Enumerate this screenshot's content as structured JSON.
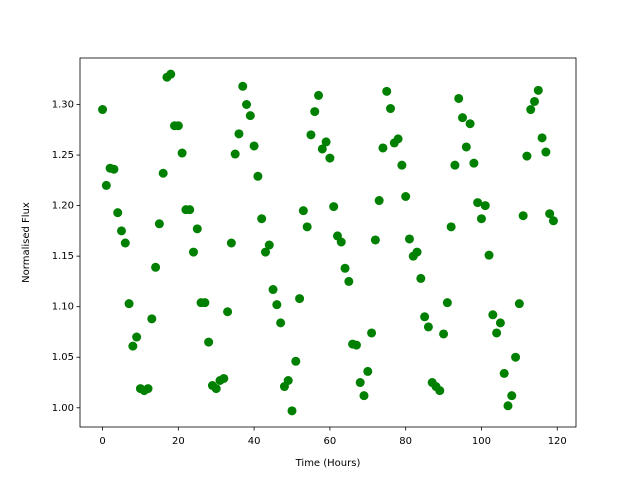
{
  "chart_data": {
    "type": "scatter",
    "xlabel": "Time (Hours)",
    "ylabel": "Normalised Flux",
    "color": "#008000",
    "x": [
      0,
      1,
      2,
      3,
      4,
      5,
      6,
      7,
      8,
      9,
      10,
      11,
      12,
      13,
      14,
      15,
      16,
      17,
      18,
      19,
      20,
      21,
      22,
      23,
      24,
      25,
      26,
      27,
      28,
      29,
      30,
      31,
      32,
      33,
      34,
      35,
      36,
      37,
      38,
      39,
      40,
      41,
      42,
      43,
      44,
      45,
      46,
      47,
      48,
      49,
      50,
      51,
      52,
      53,
      54,
      55,
      56,
      57,
      58,
      59,
      60,
      61,
      62,
      63,
      64,
      65,
      66,
      67,
      68,
      69,
      70,
      71,
      72,
      73,
      74,
      75,
      76,
      77,
      78,
      79,
      80,
      81,
      82,
      83,
      84,
      85,
      86,
      87,
      88,
      89,
      90,
      91,
      92,
      93,
      94,
      95,
      96,
      97,
      98,
      99,
      100,
      101,
      102,
      103,
      104,
      105,
      106,
      107,
      108,
      109,
      110,
      111,
      112,
      113,
      114,
      115,
      116,
      117,
      118,
      119
    ],
    "values": [
      1.295,
      1.22,
      1.237,
      1.236,
      1.193,
      1.175,
      1.163,
      1.103,
      1.061,
      1.07,
      1.019,
      1.017,
      1.019,
      1.088,
      1.139,
      1.182,
      1.232,
      1.327,
      1.33,
      1.279,
      1.279,
      1.252,
      1.196,
      1.196,
      1.154,
      1.177,
      1.104,
      1.104,
      1.065,
      1.022,
      1.019,
      1.027,
      1.029,
      1.095,
      1.163,
      1.251,
      1.271,
      1.318,
      1.3,
      1.289,
      1.259,
      1.229,
      1.187,
      1.154,
      1.161,
      1.117,
      1.102,
      1.084,
      1.021,
      1.027,
      0.997,
      1.046,
      1.108,
      1.195,
      1.179,
      1.27,
      1.293,
      1.309,
      1.256,
      1.263,
      1.247,
      1.199,
      1.17,
      1.164,
      1.138,
      1.125,
      1.063,
      1.062,
      1.025,
      1.012,
      1.036,
      1.074,
      1.166,
      1.205,
      1.257,
      1.313,
      1.296,
      1.262,
      1.266,
      1.24,
      1.209,
      1.167,
      1.15,
      1.154,
      1.128,
      1.09,
      1.08,
      1.025,
      1.021,
      1.017,
      1.073,
      1.104,
      1.179,
      1.24,
      1.306,
      1.287,
      1.258,
      1.281,
      1.242,
      1.203,
      1.187,
      1.2,
      1.151,
      1.092,
      1.074,
      1.084,
      1.034,
      1.002,
      1.012,
      1.05,
      1.103,
      1.19,
      1.249,
      1.295,
      1.303,
      1.314,
      1.267,
      1.253,
      1.192,
      1.185
    ],
    "xlim": [
      -5.95,
      124.95
    ],
    "xticks": [
      0,
      20,
      40,
      60,
      80,
      100,
      120
    ],
    "ylim": [
      0.981,
      1.346
    ],
    "yticks": [
      {
        "value": 1.0,
        "label": "1.00"
      },
      {
        "value": 1.05,
        "label": "1.05"
      },
      {
        "value": 1.1,
        "label": "1.10"
      },
      {
        "value": 1.15,
        "label": "1.15"
      },
      {
        "value": 1.2,
        "label": "1.20"
      },
      {
        "value": 1.25,
        "label": "1.25"
      },
      {
        "value": 1.3,
        "label": "1.30"
      }
    ],
    "grid": false
  }
}
